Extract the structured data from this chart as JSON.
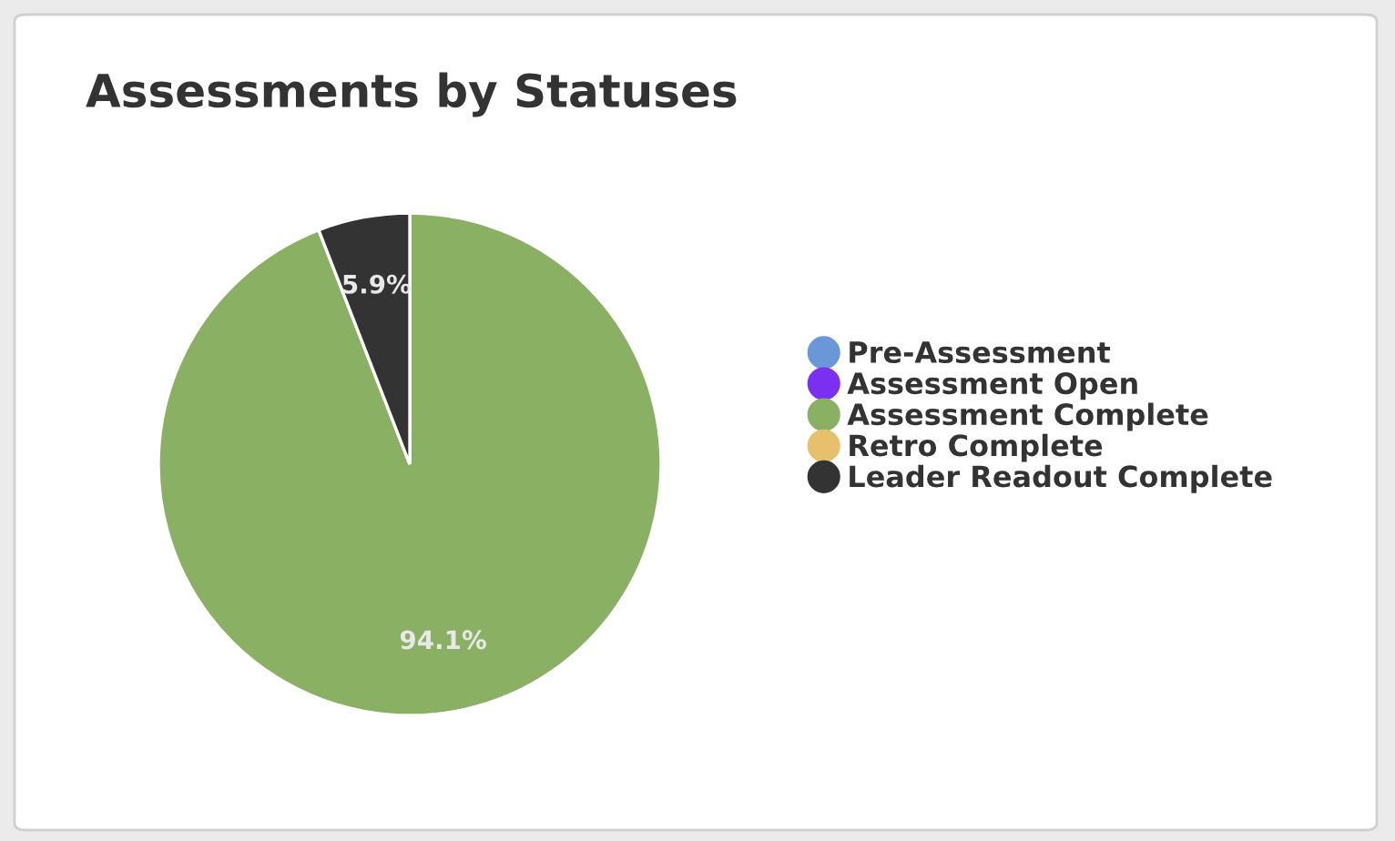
{
  "chart_data": {
    "type": "pie",
    "title": "Assessments by Statuses",
    "categories": [
      "Pre-Assessment",
      "Assessment Open",
      "Assessment Complete",
      "Retro Complete",
      "Leader Readout Complete"
    ],
    "values": [
      0,
      0,
      94.1,
      0,
      5.9
    ],
    "colors": [
      "#6a97d8",
      "#7b2ff0",
      "#8ab063",
      "#e6c06c",
      "#333333"
    ],
    "value_labels": [
      null,
      null,
      "94.1%",
      null,
      "5.9%"
    ],
    "legend": "right"
  }
}
